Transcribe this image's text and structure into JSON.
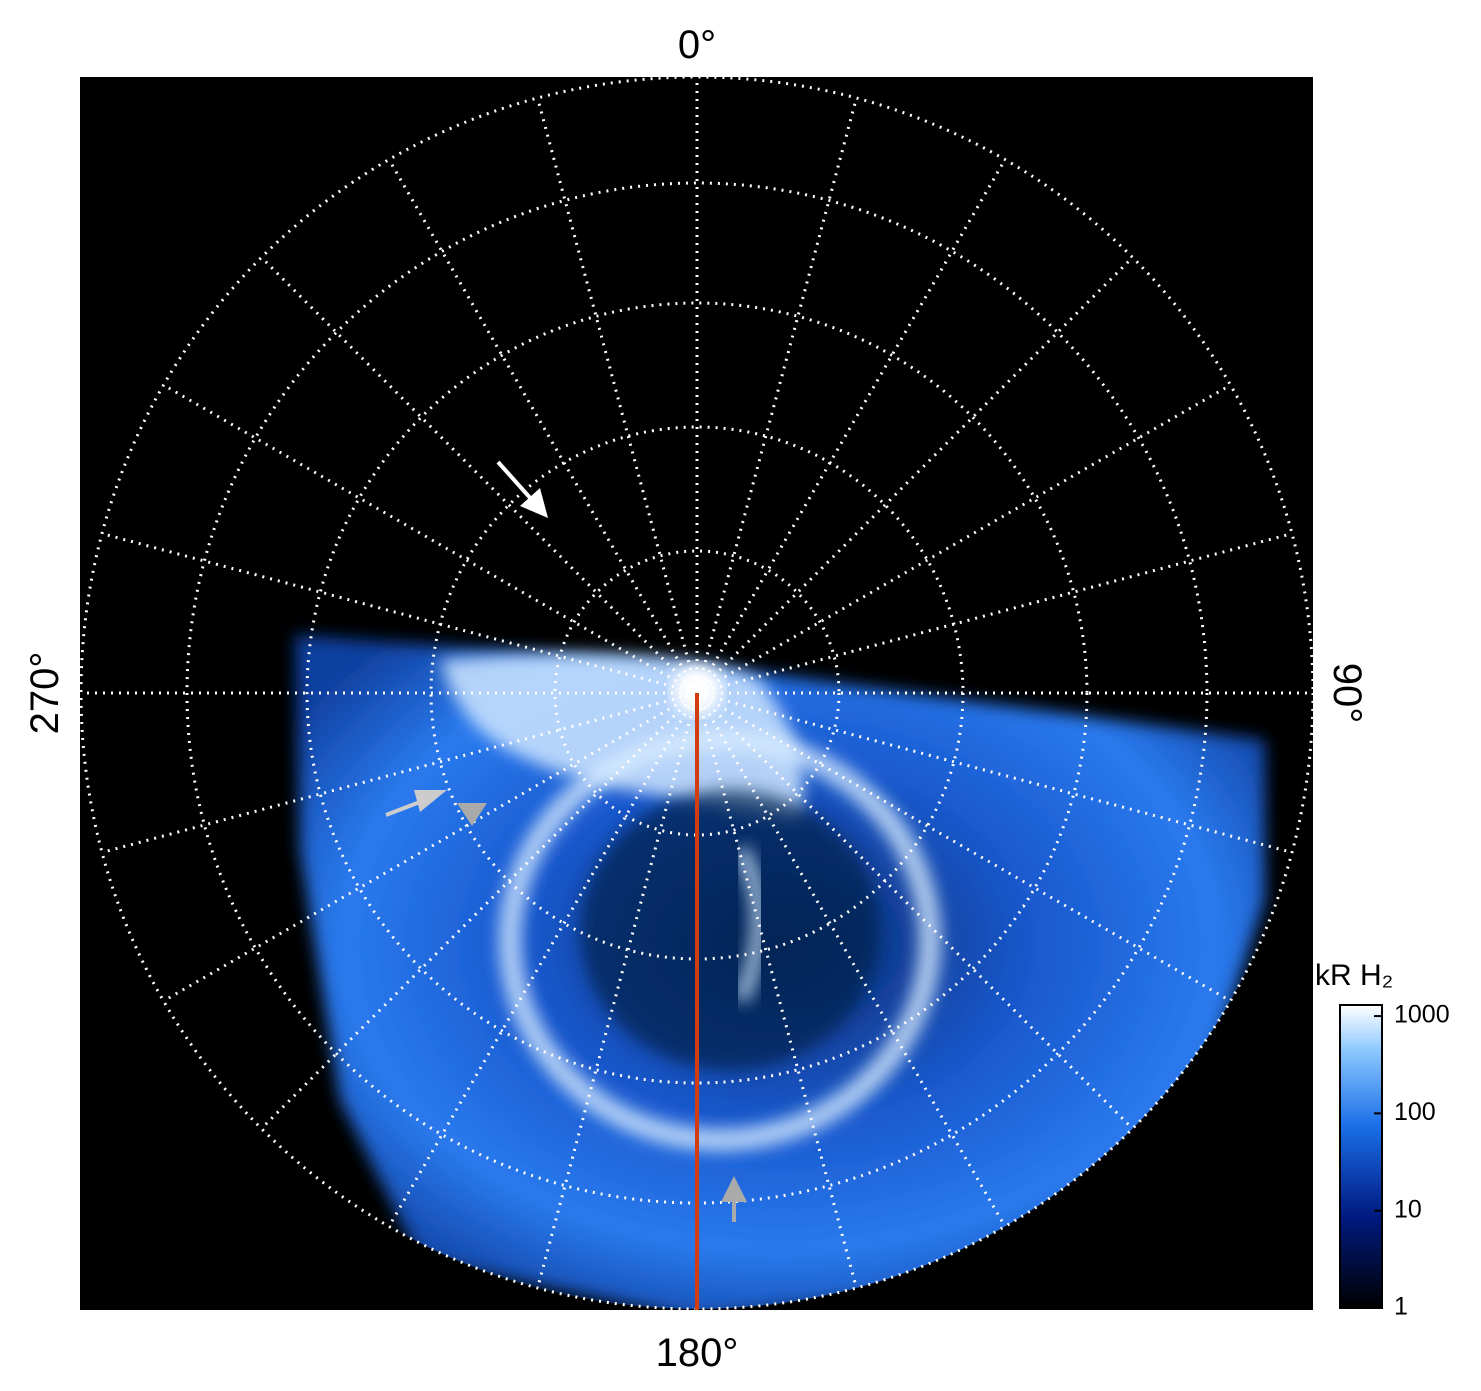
{
  "map": {
    "type": "polar-image",
    "lon_labels": {
      "top": "0°",
      "right": "90°",
      "bottom": "180°",
      "left": "270°"
    }
  },
  "colorbar": {
    "label": "kR H₂",
    "scale": "log",
    "lim": [
      1,
      1300
    ],
    "ticks": [
      1,
      10,
      100,
      1000
    ]
  }
}
